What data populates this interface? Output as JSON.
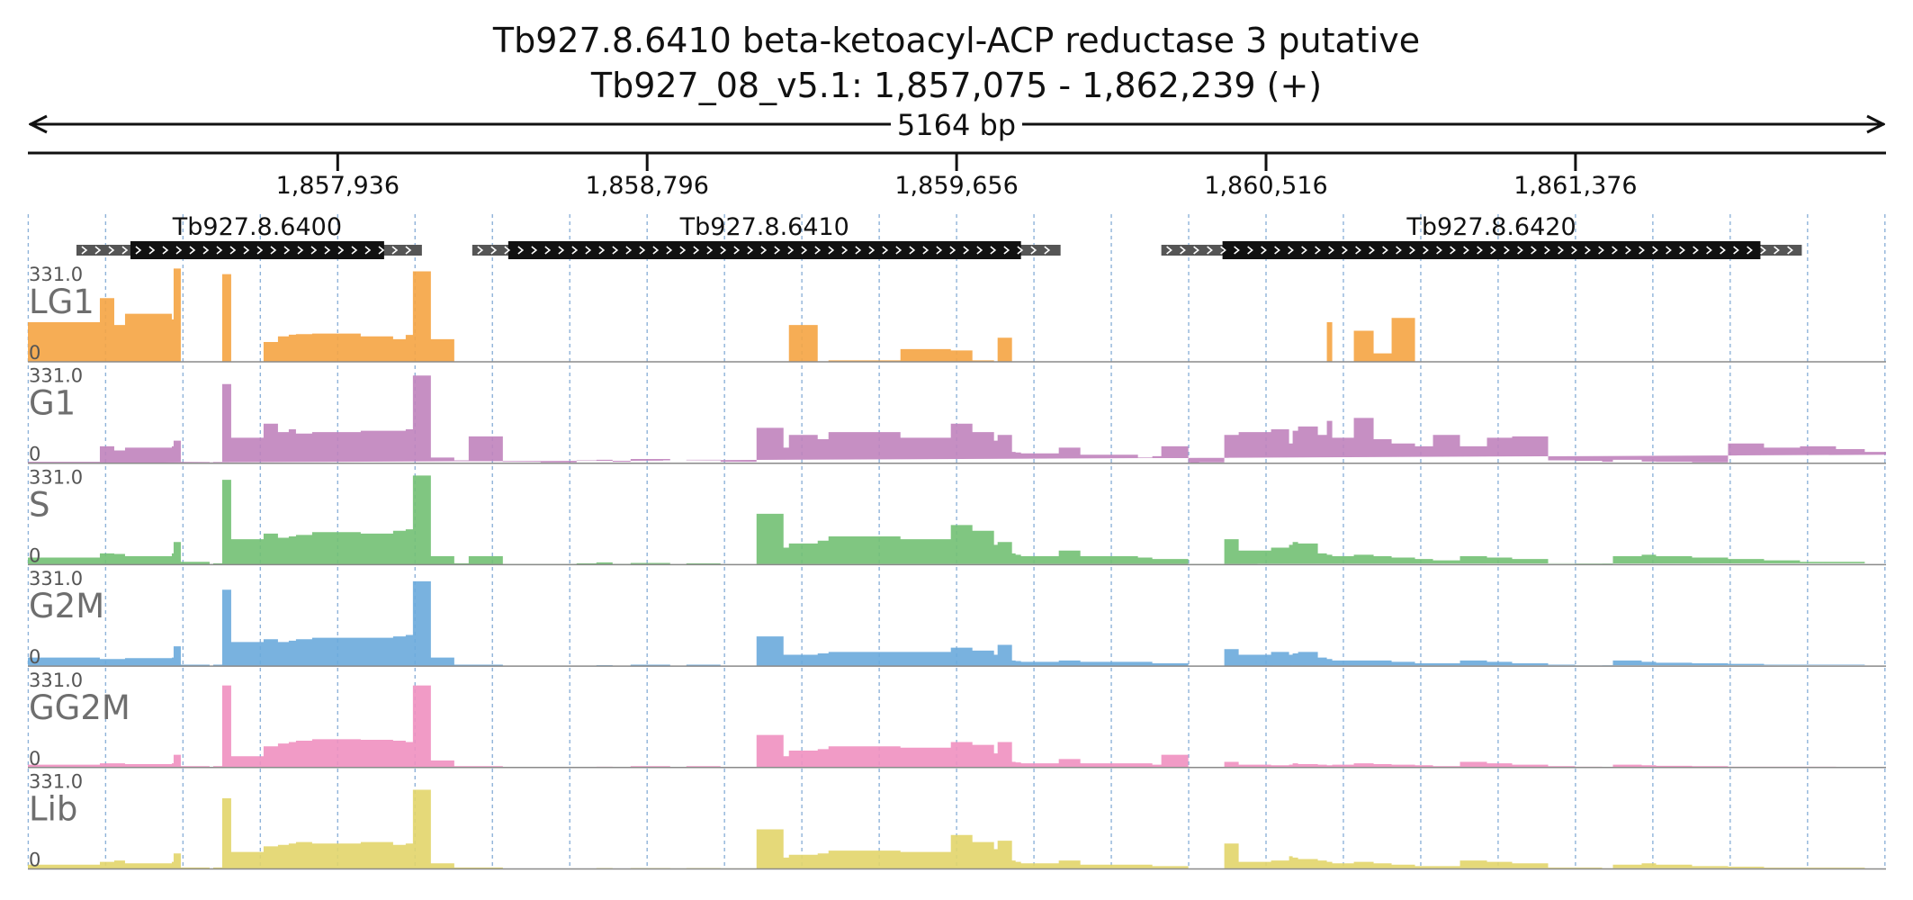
{
  "chart_data": {
    "type": "area",
    "title": "Tb927.8.6410  beta-ketoacyl-ACP reductase 3  putative",
    "subtitle": "Tb927_08_v5.1: 1,857,075 - 1,862,239 (+)",
    "span_label": "5164 bp",
    "xlim": [
      1857075,
      1862239
    ],
    "x_ticks": [
      1857936,
      1858796,
      1859656,
      1860516,
      1861376
    ],
    "x_tick_labels": [
      "1,857,936",
      "1,858,796",
      "1,859,656",
      "1,860,516",
      "1,861,376"
    ],
    "ylim": [
      0,
      331.0
    ],
    "y_max_label": "331.0",
    "y_min_label": "0",
    "genes": [
      {
        "name": "Tb927.8.6400",
        "utr_start": 1857210,
        "cds_start": 1857360,
        "cds_end": 1858065,
        "utr_end": 1858170
      },
      {
        "name": "Tb927.8.6410",
        "utr_start": 1858310,
        "cds_start": 1858410,
        "cds_end": 1859835,
        "utr_end": 1859945
      },
      {
        "name": "Tb927.8.6420",
        "utr_start": 1860225,
        "cds_start": 1860395,
        "cds_end": 1861890,
        "utr_end": 1862005
      }
    ],
    "coverage_x": [
      1857075,
      1857275,
      1857315,
      1857345,
      1857475,
      1857480,
      1857500,
      1857580,
      1857590,
      1857615,
      1857640,
      1857730,
      1857770,
      1857800,
      1857820,
      1857865,
      1858000,
      1858090,
      1858125,
      1858145,
      1858195,
      1858260,
      1858300,
      1858395,
      1858500,
      1858600,
      1858655,
      1858700,
      1858750,
      1858860,
      1858905,
      1859000,
      1859100,
      1859175,
      1859190,
      1859270,
      1859300,
      1859500,
      1859640,
      1859700,
      1859760,
      1859770,
      1859810,
      1859820,
      1859835,
      1859860,
      1859940,
      1860000,
      1860160,
      1860200,
      1860225,
      1860300,
      1860305,
      1860330,
      1860400,
      1860440,
      1860530,
      1860580,
      1860590,
      1860605,
      1860660,
      1860685,
      1860700,
      1860760,
      1860815,
      1860865,
      1860930,
      1860980,
      1861055,
      1861130,
      1861200,
      1861300,
      1861375,
      1861450,
      1861480,
      1861560,
      1861600,
      1861700,
      1861800,
      1861900,
      1862000,
      1862100,
      1862180,
      1862239
    ],
    "series": [
      {
        "name": "LG1",
        "color": "#f5a443",
        "values": [
          140,
          225,
          130,
          170,
          150,
          330,
          0,
          0,
          0,
          310,
          0,
          70,
          90,
          96,
          98,
          100,
          90,
          80,
          95,
          320,
          80,
          0,
          0,
          0,
          0,
          0,
          0,
          0,
          0,
          0,
          0,
          0,
          0,
          0,
          130,
          0,
          5,
          45,
          40,
          5,
          0,
          85,
          0,
          0,
          0,
          0,
          0,
          0,
          0,
          0,
          0,
          0,
          0,
          0,
          0,
          0,
          0,
          0,
          0,
          0,
          0,
          140,
          0,
          110,
          30,
          155,
          0,
          0,
          0,
          0,
          0,
          0,
          0,
          0,
          0,
          0,
          0,
          0,
          0,
          0,
          0,
          0,
          0,
          0
        ]
      },
      {
        "name": "G1",
        "color": "#c083bd",
        "values": [
          5,
          60,
          45,
          55,
          60,
          80,
          5,
          2,
          5,
          280,
          90,
          140,
          110,
          120,
          105,
          110,
          115,
          115,
          120,
          310,
          20,
          10,
          95,
          5,
          3,
          10,
          12,
          5,
          15,
          10,
          12,
          5,
          125,
          55,
          100,
          85,
          110,
          90,
          140,
          110,
          80,
          100,
          40,
          38,
          35,
          35,
          55,
          30,
          20,
          25,
          60,
          3,
          2,
          3,
          100,
          110,
          120,
          70,
          115,
          130,
          100,
          150,
          90,
          160,
          85,
          70,
          60,
          100,
          60,
          90,
          95,
          10,
          8,
          5,
          12,
          6,
          5,
          3,
          70,
          55,
          60,
          50,
          40,
          30
        ]
      },
      {
        "name": "S",
        "color": "#72c073",
        "values": [
          25,
          40,
          38,
          30,
          40,
          80,
          10,
          2,
          5,
          300,
          90,
          110,
          95,
          100,
          105,
          115,
          110,
          120,
          125,
          315,
          30,
          5,
          30,
          2,
          2,
          5,
          8,
          3,
          6,
          2,
          5,
          2,
          180,
          60,
          75,
          85,
          100,
          90,
          140,
          120,
          70,
          80,
          40,
          35,
          30,
          30,
          50,
          30,
          25,
          20,
          20,
          2,
          2,
          2,
          90,
          50,
          60,
          70,
          80,
          75,
          40,
          35,
          30,
          35,
          30,
          25,
          20,
          15,
          30,
          25,
          20,
          5,
          3,
          2,
          30,
          35,
          30,
          25,
          20,
          15,
          10,
          10,
          5,
          5
        ]
      },
      {
        "name": "G2M",
        "color": "#6aaadc",
        "values": [
          30,
          25,
          25,
          28,
          30,
          70,
          5,
          2,
          5,
          270,
          85,
          95,
          85,
          90,
          95,
          100,
          100,
          105,
          110,
          300,
          30,
          5,
          5,
          0,
          0,
          0,
          3,
          0,
          5,
          2,
          5,
          2,
          105,
          40,
          40,
          45,
          50,
          50,
          65,
          55,
          40,
          75,
          20,
          18,
          15,
          15,
          20,
          15,
          15,
          10,
          10,
          2,
          2,
          2,
          60,
          40,
          50,
          40,
          45,
          50,
          30,
          25,
          20,
          20,
          20,
          15,
          10,
          10,
          20,
          15,
          10,
          5,
          3,
          2,
          20,
          15,
          12,
          10,
          8,
          5,
          5,
          5,
          3,
          3
        ]
      },
      {
        "name": "GG2M",
        "color": "#f090c0",
        "values": [
          10,
          15,
          15,
          12,
          15,
          45,
          5,
          2,
          5,
          290,
          40,
          75,
          85,
          90,
          95,
          100,
          98,
          95,
          90,
          290,
          25,
          5,
          5,
          0,
          0,
          0,
          3,
          0,
          5,
          2,
          5,
          2,
          115,
          40,
          60,
          65,
          75,
          70,
          90,
          80,
          50,
          90,
          20,
          18,
          15,
          15,
          30,
          15,
          15,
          10,
          45,
          3,
          2,
          2,
          20,
          10,
          8,
          10,
          15,
          12,
          10,
          8,
          10,
          15,
          12,
          10,
          8,
          5,
          20,
          15,
          10,
          5,
          3,
          2,
          10,
          8,
          6,
          5,
          3,
          3,
          3,
          2,
          2,
          2
        ]
      },
      {
        "name": "Lib",
        "color": "#e2d56a",
        "values": [
          15,
          25,
          30,
          20,
          25,
          55,
          5,
          2,
          5,
          250,
          60,
          80,
          85,
          90,
          95,
          90,
          95,
          85,
          90,
          280,
          20,
          5,
          5,
          0,
          0,
          0,
          3,
          0,
          3,
          2,
          3,
          2,
          140,
          40,
          50,
          55,
          65,
          60,
          120,
          95,
          70,
          100,
          30,
          25,
          20,
          20,
          30,
          15,
          15,
          10,
          10,
          2,
          2,
          2,
          90,
          25,
          30,
          45,
          40,
          35,
          30,
          25,
          20,
          25,
          20,
          15,
          10,
          10,
          30,
          25,
          20,
          5,
          5,
          3,
          15,
          20,
          15,
          10,
          8,
          5,
          5,
          5,
          3,
          3
        ]
      }
    ]
  }
}
